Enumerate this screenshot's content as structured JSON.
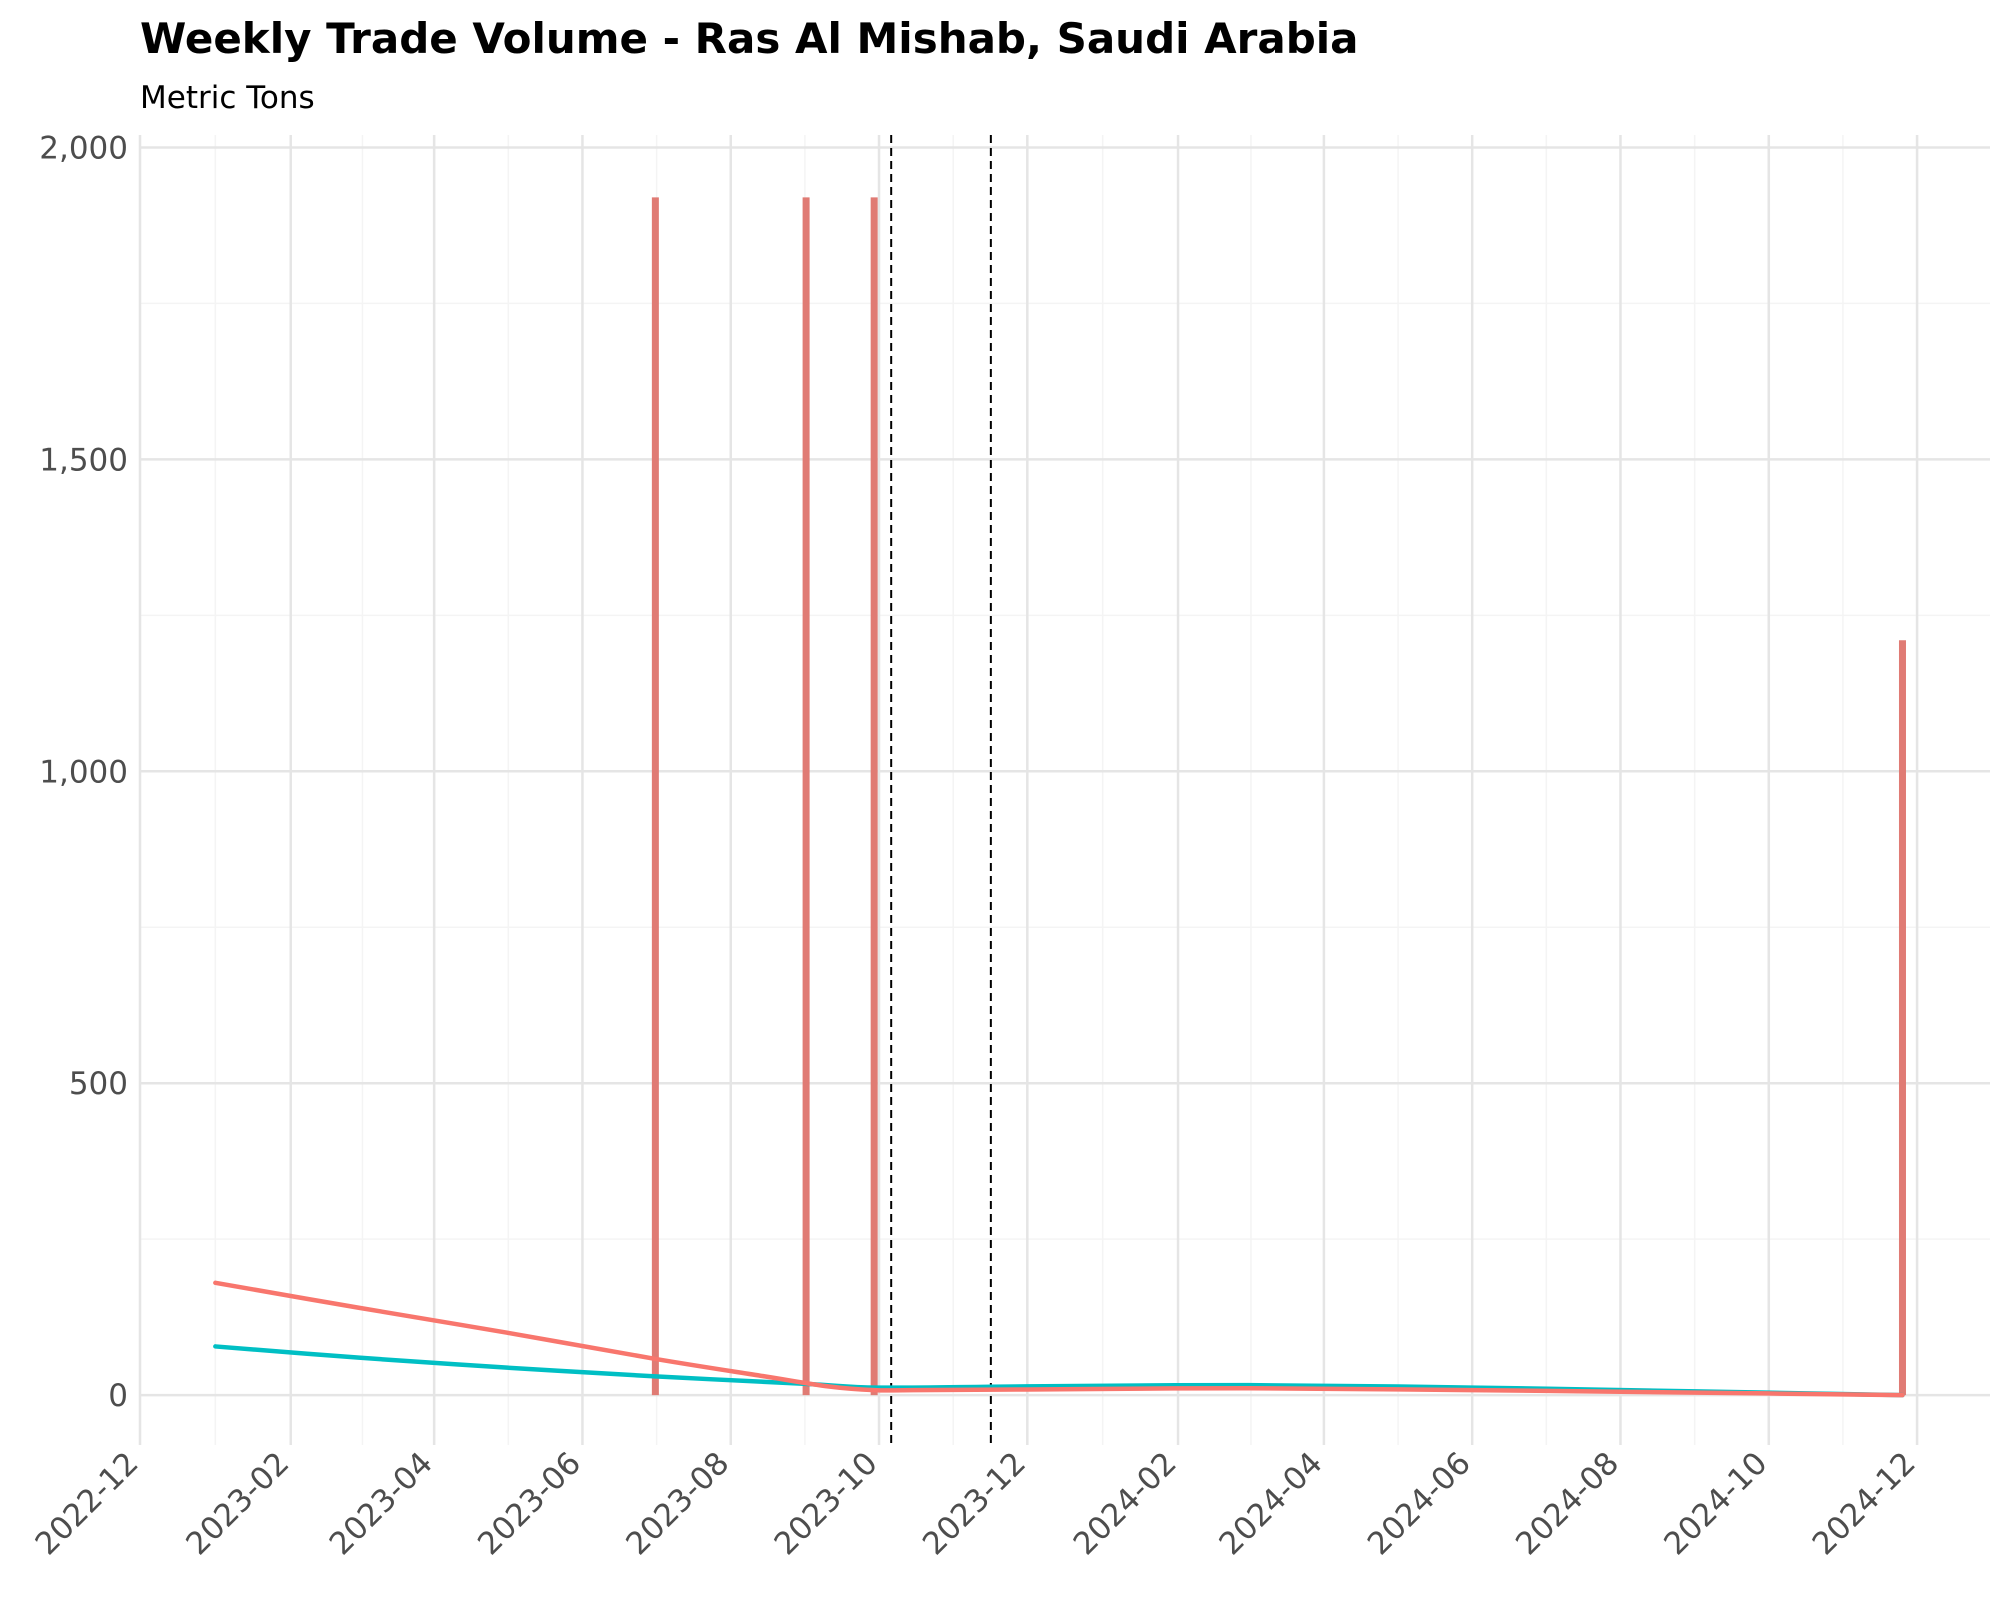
{
  "chart_data": {
    "type": "line",
    "title": "Weekly Trade Volume - Ras Al Mishab, Saudi Arabia",
    "subtitle": "Metric Tons",
    "xlabel": "",
    "ylabel": "",
    "x_axis_type": "date",
    "xlim": [
      "2022-12-01",
      "2024-12-31"
    ],
    "ylim": [
      -80,
      2020
    ],
    "y_ticks": [
      0,
      500,
      1000,
      1500,
      2000
    ],
    "y_tick_labels": [
      "0",
      "500",
      "1,000",
      "1,500",
      "2,000"
    ],
    "x_ticks": [
      "2022-12-01",
      "2023-02-01",
      "2023-04-01",
      "2023-06-01",
      "2023-08-01",
      "2023-10-01",
      "2023-12-01",
      "2024-02-01",
      "2024-04-01",
      "2024-06-01",
      "2024-08-01",
      "2024-10-01",
      "2024-12-01"
    ],
    "x_tick_labels": [
      "2022-12",
      "2023-02",
      "2023-04",
      "2023-06",
      "2023-08",
      "2023-10",
      "2023-12",
      "2024-02",
      "2024-04",
      "2024-06",
      "2024-08",
      "2024-10",
      "2024-12"
    ],
    "grid": true,
    "legend": "none",
    "colors": {
      "red": "#F8766D",
      "spike": "#E07B74",
      "teal": "#00BFC4",
      "grid_major": "#E5E5E5",
      "grid_minor": "#F4F4F4",
      "vline": "#000000"
    },
    "spikes": [
      {
        "x": "2023-07-01",
        "y": 1920
      },
      {
        "x": "2023-09-01",
        "y": 1920
      },
      {
        "x": "2023-09-29",
        "y": 1920
      },
      {
        "x": "2024-11-25",
        "y": 1210
      }
    ],
    "vlines": [
      "2023-10-06",
      "2023-11-16"
    ],
    "series": [
      {
        "color": "#F8766D",
        "x": [
          "2023-01-01",
          "2023-03-01",
          "2023-05-01",
          "2023-07-01",
          "2023-08-15",
          "2023-09-10",
          "2023-09-29",
          "2023-10-15",
          "2023-12-01",
          "2024-03-01",
          "2024-06-01",
          "2024-09-01",
          "2024-11-25"
        ],
        "y": [
          180,
          140,
          100,
          58,
          30,
          14,
          8,
          8,
          9,
          11,
          8,
          4,
          0
        ]
      },
      {
        "color": "#00BFC4",
        "x": [
          "2023-01-01",
          "2023-03-01",
          "2023-05-01",
          "2023-07-01",
          "2023-09-01",
          "2023-10-01",
          "2023-12-01",
          "2024-03-01",
          "2024-06-01",
          "2024-09-01",
          "2024-11-25"
        ],
        "y": [
          78,
          60,
          44,
          30,
          18,
          12,
          14,
          16,
          12,
          6,
          0
        ]
      }
    ]
  }
}
